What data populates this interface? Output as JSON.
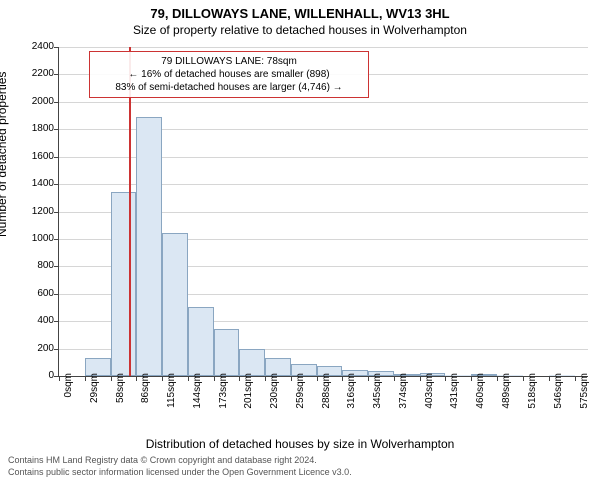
{
  "title_line1": "79, DILLOWAYS LANE, WILLENHALL, WV13 3HL",
  "title_line2": "Size of property relative to detached houses in Wolverhampton",
  "ylabel": "Number of detached properties",
  "xlabel": "Distribution of detached houses by size in Wolverhampton",
  "footer_line1": "Contains HM Land Registry data © Crown copyright and database right 2024.",
  "footer_line2": "Contains public sector information licensed under the Open Government Licence v3.0.",
  "info_box": {
    "line1": "79 DILLOWAYS LANE: 78sqm",
    "line2": "← 16% of detached houses are smaller (898)",
    "line3": "83% of semi-detached houses are larger (4,746) →",
    "border_color": "#cc3333",
    "bg_color": "#ffffff"
  },
  "chart": {
    "type": "bar",
    "xlim": [
      0,
      590
    ],
    "ylim": [
      0,
      2400
    ],
    "ytick_step": 200,
    "x_ticks": [
      0,
      29,
      58,
      86,
      115,
      144,
      173,
      201,
      230,
      259,
      288,
      316,
      345,
      374,
      403,
      431,
      460,
      489,
      518,
      546,
      575
    ],
    "x_tick_suffix": "sqm",
    "bar_fill": "#dbe7f3",
    "bar_stroke": "#8aa6c1",
    "grid_color": "#d6d6d6",
    "marker_x": 78,
    "marker_color": "#cc3333",
    "bars": [
      {
        "x0": 0,
        "x1": 29,
        "y": 0
      },
      {
        "x0": 29,
        "x1": 58,
        "y": 130
      },
      {
        "x0": 58,
        "x1": 86,
        "y": 1340
      },
      {
        "x0": 86,
        "x1": 115,
        "y": 1890
      },
      {
        "x0": 115,
        "x1": 144,
        "y": 1040
      },
      {
        "x0": 144,
        "x1": 173,
        "y": 500
      },
      {
        "x0": 173,
        "x1": 201,
        "y": 340
      },
      {
        "x0": 201,
        "x1": 230,
        "y": 200
      },
      {
        "x0": 230,
        "x1": 259,
        "y": 130
      },
      {
        "x0": 259,
        "x1": 288,
        "y": 90
      },
      {
        "x0": 288,
        "x1": 316,
        "y": 70
      },
      {
        "x0": 316,
        "x1": 345,
        "y": 45
      },
      {
        "x0": 345,
        "x1": 374,
        "y": 35
      },
      {
        "x0": 374,
        "x1": 403,
        "y": 8
      },
      {
        "x0": 403,
        "x1": 431,
        "y": 25
      },
      {
        "x0": 431,
        "x1": 460,
        "y": 5
      },
      {
        "x0": 460,
        "x1": 489,
        "y": 15
      },
      {
        "x0": 489,
        "x1": 518,
        "y": 5
      },
      {
        "x0": 518,
        "x1": 546,
        "y": 0
      },
      {
        "x0": 546,
        "x1": 575,
        "y": 5
      }
    ]
  }
}
